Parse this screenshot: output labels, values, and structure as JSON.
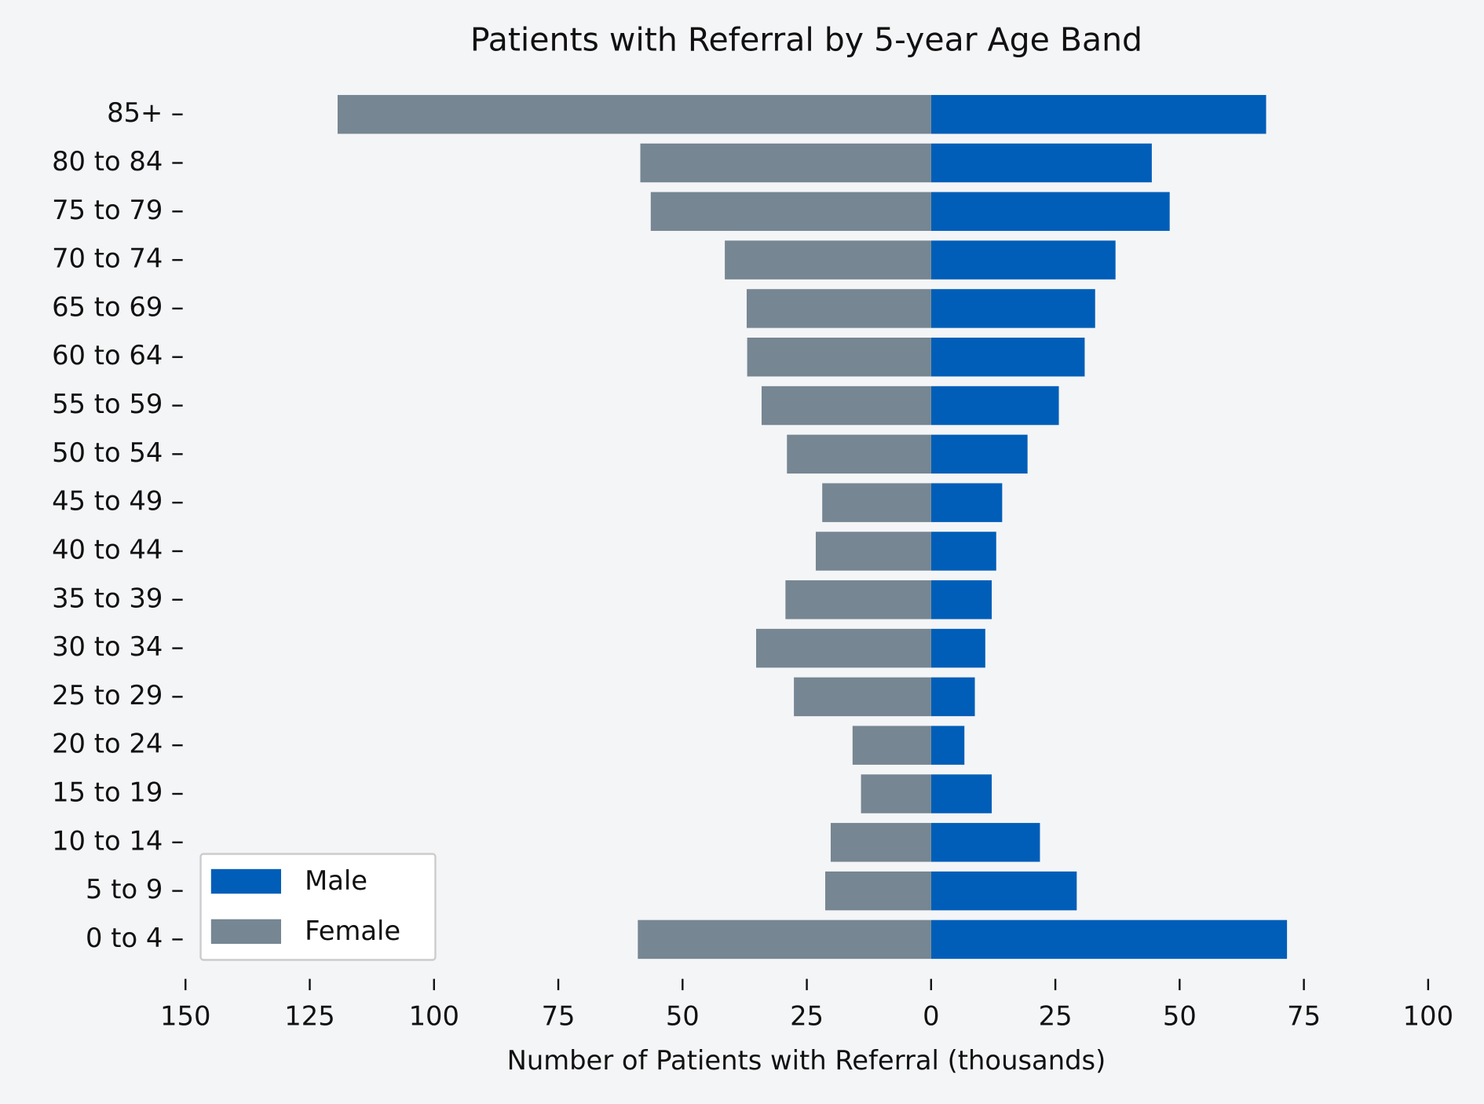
{
  "chart_data": {
    "type": "bar",
    "orientation": "horizontal",
    "stacked": "diverging",
    "title": "Patients with Referral by 5-year Age Band",
    "x_label": "Number of Patients with Referral (thousands)",
    "categories": [
      "0 to 4",
      "5 to 9",
      "10 to 14",
      "15 to 19",
      "20 to 24",
      "25 to 29",
      "30 to 34",
      "35 to 39",
      "40 to 44",
      "45 to 49",
      "50 to 54",
      "55 to 59",
      "60 to 64",
      "65 to 69",
      "70 to 74",
      "75 to 79",
      "80 to 84",
      "85+"
    ],
    "series": [
      {
        "name": "Male",
        "color": "#005eb8",
        "values": [
          71.6,
          29.3,
          21.9,
          12.2,
          6.7,
          8.8,
          10.9,
          12.2,
          13.1,
          14.3,
          19.4,
          25.7,
          30.9,
          33.0,
          37.1,
          48.0,
          44.4,
          67.4
        ]
      },
      {
        "name": "Female",
        "color": "#768692",
        "values": [
          -59.0,
          -21.3,
          -20.2,
          -14.1,
          -15.8,
          -27.6,
          -35.2,
          -29.3,
          -23.2,
          -21.9,
          -29.0,
          -34.1,
          -37.0,
          -37.1,
          -41.5,
          -56.4,
          -58.5,
          -119.4
        ]
      }
    ],
    "xlim": [
      -150,
      100
    ],
    "xticks": [
      {
        "value": -150,
        "label": "150"
      },
      {
        "value": -125,
        "label": "125"
      },
      {
        "value": -100,
        "label": "100"
      },
      {
        "value": -75,
        "label": "75"
      },
      {
        "value": -50,
        "label": "50"
      },
      {
        "value": -25,
        "label": "25"
      },
      0,
      25,
      50,
      75,
      100
    ],
    "legend": "lower left",
    "grid": false
  }
}
